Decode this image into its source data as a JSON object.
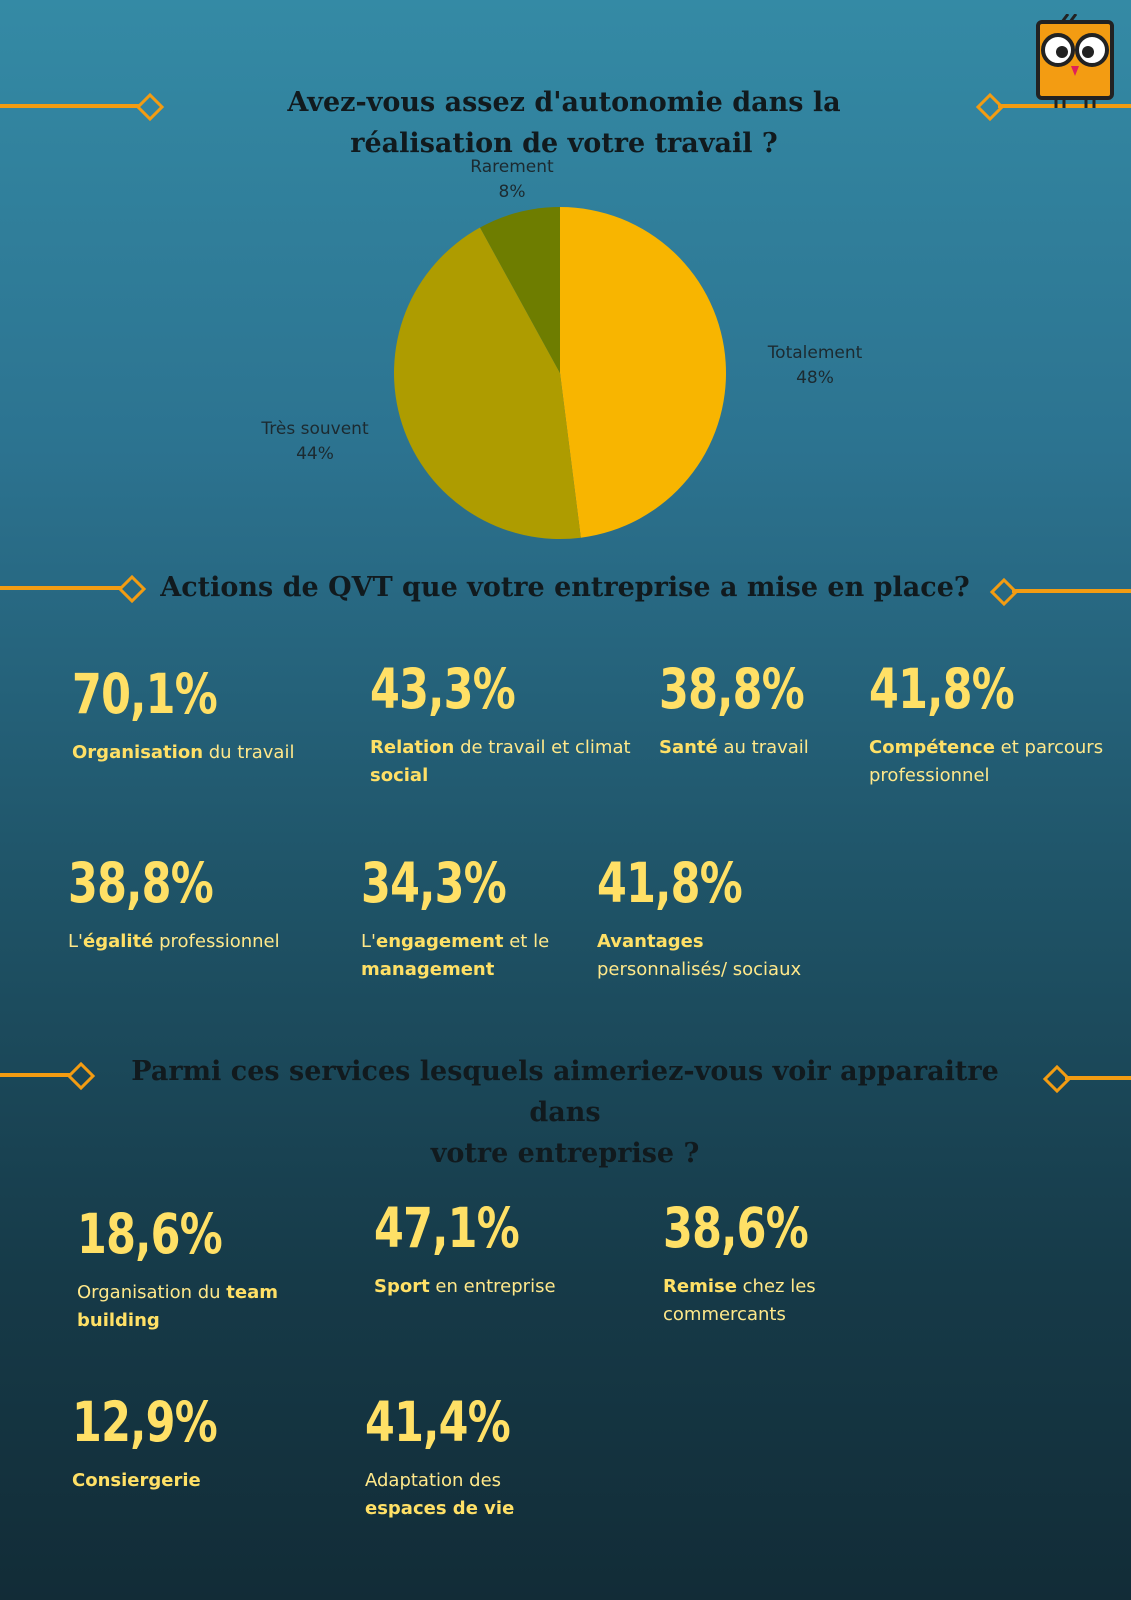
{
  "section1": {
    "title_line1": "Avez-vous assez d'autonomie dans la",
    "title_line2": "réalisation de votre travail ?"
  },
  "chart_data": {
    "type": "pie",
    "title": "Avez-vous assez d'autonomie dans la réalisation de votre travail ?",
    "slices": [
      {
        "label": "Totalement",
        "value": 48,
        "display": "48%",
        "color": "#f8b500"
      },
      {
        "label": "Très souvent",
        "value": 44,
        "display": "44%",
        "color": "#ae9c00"
      },
      {
        "label": "Rarement",
        "value": 8,
        "display": "8%",
        "color": "#6e7d00"
      }
    ]
  },
  "section2": {
    "title": "Actions de QVT que votre entreprise a mise en place?",
    "stats": [
      {
        "pct": "70,1%",
        "bold1": "Organisation",
        "text1": " du travail"
      },
      {
        "pct": "43,3%",
        "bold1": "Relation",
        "text1": " de travail et climat ",
        "bold2": "social"
      },
      {
        "pct": "38,8%",
        "bold1": "Santé",
        "text1": " au travail"
      },
      {
        "pct": "41,8%",
        "bold1": "Compétence",
        "text1": " et parcours professionnel"
      },
      {
        "pct": "38,8%",
        "pre": "L'",
        "bold1": "égalité",
        "text1": " professionnel"
      },
      {
        "pct": "34,3%",
        "pre": "L'",
        "bold1": "engagement",
        "text1": " et le ",
        "bold2": "management"
      },
      {
        "pct": "41,8%",
        "bold1": "Avantages",
        "text1": " personnalisés/ sociaux"
      }
    ]
  },
  "section3": {
    "title_line1": "Parmi ces services lesquels aimeriez-vous voir apparaitre dans",
    "title_line2": "votre entreprise ?",
    "stats": [
      {
        "pct": "18,6%",
        "pre": "Organisation du ",
        "bold1": "team building"
      },
      {
        "pct": "47,1%",
        "bold1": "Sport",
        "text1": " en entreprise"
      },
      {
        "pct": "38,6%",
        "bold1": "Remise",
        "text1": " chez les commercants"
      },
      {
        "pct": "12,9%",
        "bold1": "Consiergerie"
      },
      {
        "pct": "41,4%",
        "pre": "Adaptation des ",
        "bold1": "espaces de vie"
      }
    ]
  },
  "icons": {
    "logo": "owl-logo-icon",
    "decoration": "diamond-line-icon"
  },
  "colors": {
    "accent": "#f39c12",
    "highlight": "#ffe066",
    "title": "#111a1e"
  }
}
